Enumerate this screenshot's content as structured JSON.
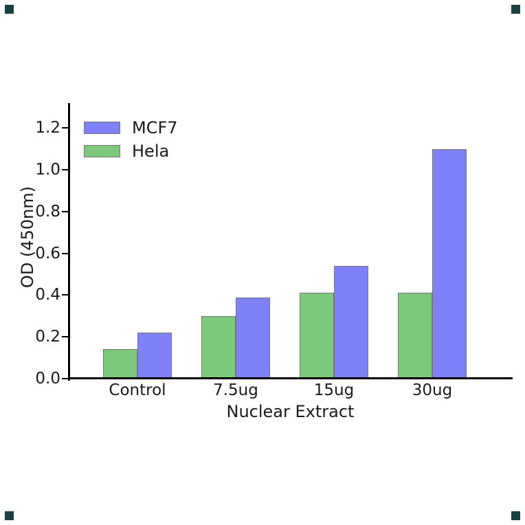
{
  "chart_data": {
    "type": "bar",
    "title": "",
    "xlabel": "Nuclear Extract",
    "ylabel": "OD (450nm)",
    "categories": [
      "Control",
      "7.5ug",
      "15ug",
      "30ug"
    ],
    "series": [
      {
        "name": "Hela",
        "color": "#7DC87D",
        "values": [
          0.14,
          0.3,
          0.41,
          0.41
        ]
      },
      {
        "name": "MCF7",
        "color": "#8080F8",
        "values": [
          0.22,
          0.39,
          0.54,
          1.1
        ]
      }
    ],
    "legend_order": [
      "MCF7",
      "Hela"
    ],
    "legend_position": "upper-left",
    "grid": false,
    "ylim": [
      0,
      1.32
    ],
    "yticks": [
      "0.0",
      "0.2",
      "0.4",
      "0.6",
      "0.8",
      "1.0",
      "1.2"
    ],
    "bar_edge_color": "#747474",
    "axis_color": "#000000"
  },
  "page": {
    "background": "#FFFFFF",
    "corner_marker_color": "#1B4040"
  }
}
